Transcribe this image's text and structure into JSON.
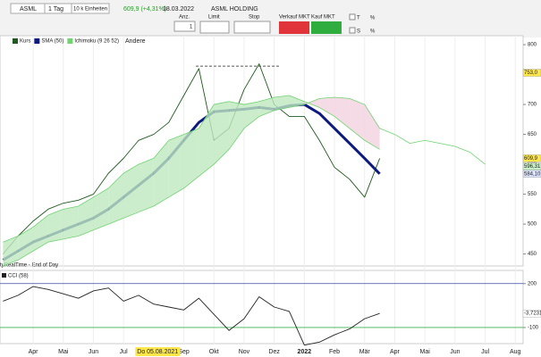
{
  "toolbar": {
    "symbol": "ASML",
    "period": "1 Tag",
    "units": "10 k Einheiten",
    "quote": "609,9 (+4,31%)",
    "date": "18.03.2022",
    "name": "ASML HOLDING",
    "qty_label": "Anz.",
    "qty": "1",
    "limit": "Limit",
    "stop": "Stop",
    "sell": "Verkauf MKT",
    "buy": "Kauf MKT",
    "t": "T",
    "t_pct": "%",
    "s": "S",
    "s_pct": "%"
  },
  "legend_other": "Andere",
  "source": "tyRealTime - End of Day",
  "chart_data": [
    {
      "type": "line",
      "x": [
        -1,
        -0.5,
        0,
        0.5,
        1,
        1.5,
        2,
        2.5,
        3,
        3.5,
        4,
        4.5,
        5,
        5.5,
        6,
        6.5,
        7,
        7.5,
        8,
        8.5,
        9,
        9.5,
        10,
        10.5,
        11,
        11.5,
        12,
        12.5,
        13,
        13.5,
        14,
        14.5,
        15
      ],
      "xlim": [
        -1.1,
        16.26
      ],
      "xticks": [
        {
          "value": 0,
          "label": "Apr"
        },
        {
          "value": 1,
          "label": "Mai"
        },
        {
          "value": 2,
          "label": "Jun"
        },
        {
          "value": 3,
          "label": "Jul"
        },
        {
          "value": 5,
          "label": "Sep"
        },
        {
          "value": 6,
          "label": "Okt"
        },
        {
          "value": 7,
          "label": "Nov"
        },
        {
          "value": 8,
          "label": "Dez"
        },
        {
          "value": 9,
          "label": "2022"
        },
        {
          "value": 10,
          "label": "Feb"
        },
        {
          "value": 11,
          "label": "Mär"
        },
        {
          "value": 12,
          "label": "Apr"
        },
        {
          "value": 13,
          "label": "Mai"
        },
        {
          "value": 14,
          "label": "Jun"
        },
        {
          "value": 15,
          "label": "Jul"
        },
        {
          "value": 16,
          "label": "Aug"
        }
      ],
      "crosshair": {
        "value": 4.13,
        "label": "Do 05.08.2021"
      },
      "ylim": [
        430,
        815
      ],
      "yticks": [
        450,
        500,
        550,
        600,
        650,
        700,
        750,
        800
      ],
      "series": [
        {
          "name": "Kurs",
          "color": "#1e5a1e",
          "values": [
            450,
            480,
            505,
            525,
            535,
            540,
            550,
            585,
            610,
            640,
            650,
            670,
            715,
            760,
            640,
            660,
            725,
            768,
            700,
            680,
            680,
            640,
            595,
            575,
            545,
            609.9,
            null,
            null,
            null,
            null,
            null,
            null,
            null
          ]
        },
        {
          "name": "SMA (50)",
          "color": "#0c1a80",
          "values": [
            440,
            455,
            470,
            480,
            490,
            500,
            510,
            525,
            545,
            565,
            585,
            610,
            640,
            670,
            688,
            690,
            692,
            695,
            692,
            698,
            700,
            685,
            660,
            635,
            610,
            584.1,
            null,
            null,
            null,
            null,
            null,
            null,
            null
          ]
        },
        {
          "name": "Ichimoku (9 26 52)",
          "color": "#6fd36f",
          "fill_up": "#bfe8bf",
          "fill_down": "#f3d2de",
          "values": [
            470,
            480,
            495,
            515,
            525,
            530,
            545,
            560,
            585,
            600,
            610,
            640,
            650,
            660,
            700,
            705,
            700,
            705,
            712,
            715,
            705,
            695,
            680,
            660,
            640,
            625,
            null,
            null,
            null,
            null,
            null,
            null,
            null
          ],
          "lower": [
            430,
            440,
            455,
            470,
            475,
            480,
            490,
            500,
            510,
            520,
            530,
            545,
            560,
            580,
            600,
            625,
            660,
            680,
            690,
            695,
            700,
            710,
            712,
            710,
            700,
            660,
            650,
            635,
            640,
            635,
            630,
            620,
            600
          ]
        }
      ],
      "dashed_level": {
        "x": [
          5.4,
          8.2
        ],
        "y": 764
      },
      "tags": [
        {
          "value": 753,
          "label": "753,0",
          "color": "#ffe74a"
        },
        {
          "value": 609.9,
          "label": "609,9",
          "color": "#ffe74a"
        },
        {
          "value": 596.31,
          "label": "596,31",
          "color": "#c8f0c8"
        },
        {
          "value": 584.1,
          "label": "584,10",
          "color": "#dfe4ff"
        }
      ]
    },
    {
      "type": "line",
      "title": "CCI (58)",
      "x": [
        -1,
        -0.5,
        0,
        0.5,
        1,
        1.5,
        2,
        2.5,
        3,
        3.5,
        4,
        4.5,
        5,
        5.5,
        6,
        6.5,
        7,
        7.5,
        8,
        8.5,
        9,
        9.5,
        10,
        10.5,
        11,
        11.5
      ],
      "xlim": [
        -1.1,
        16.26
      ],
      "ylim": [
        -210,
        290
      ],
      "yticks": [
        200,
        0,
        -100
      ],
      "levels": [
        {
          "value": 200,
          "color": "#3a4aa8"
        },
        {
          "value": -100,
          "color": "#3cb44b"
        }
      ],
      "series": [
        {
          "color": "#222222",
          "values": [
            80,
            120,
            180,
            160,
            130,
            100,
            150,
            170,
            80,
            120,
            60,
            40,
            20,
            100,
            -10,
            -120,
            -40,
            110,
            40,
            10,
            -220,
            -200,
            -150,
            -110,
            -40,
            -3.7231
          ]
        }
      ],
      "tags": [
        {
          "value": -3.7231,
          "label": "-3,7231",
          "color": "#ffffff"
        }
      ]
    }
  ]
}
